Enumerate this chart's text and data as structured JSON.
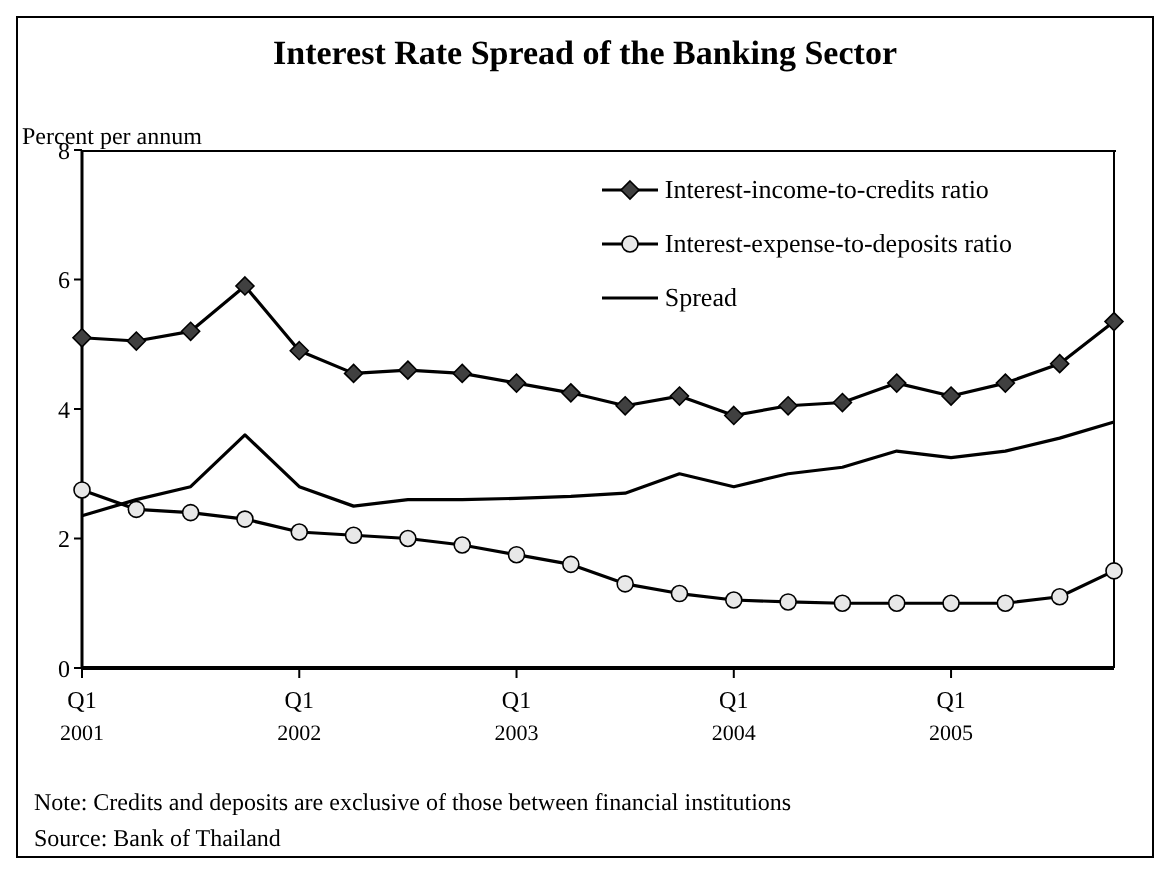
{
  "chart_data": {
    "type": "line",
    "title": "Interest Rate Spread of the Banking Sector",
    "ylabel": "Percent per annum",
    "categories": [
      "Q1\n2001",
      null,
      null,
      null,
      "Q1\n2002",
      null,
      null,
      null,
      "Q1\n2003",
      null,
      null,
      null,
      "Q1\n2004",
      null,
      null,
      null,
      "Q1\n2005",
      null,
      null,
      null
    ],
    "series": [
      {
        "name": "Interest-income-to-credits ratio",
        "color": "#000000",
        "marker": "diamond",
        "values": [
          5.1,
          5.05,
          5.2,
          5.9,
          4.9,
          4.55,
          4.6,
          4.55,
          4.4,
          4.25,
          4.05,
          4.2,
          3.9,
          4.05,
          4.1,
          4.4,
          4.2,
          4.4,
          4.7,
          5.35
        ]
      },
      {
        "name": "Interest-expense-to-deposits ratio",
        "color": "#000000",
        "marker": "circle",
        "values": [
          2.75,
          2.45,
          2.4,
          2.3,
          2.1,
          2.05,
          2.0,
          1.9,
          1.75,
          1.6,
          1.3,
          1.15,
          1.05,
          1.02,
          1.0,
          1.0,
          1.0,
          1.0,
          1.1,
          1.5
        ]
      },
      {
        "name": "Spread",
        "color": "#000000",
        "marker": "none",
        "values": [
          2.35,
          2.6,
          2.8,
          3.6,
          2.8,
          2.5,
          2.6,
          2.6,
          2.62,
          2.65,
          2.7,
          3.0,
          2.8,
          3.0,
          3.1,
          3.35,
          3.25,
          3.35,
          3.55,
          3.8
        ]
      }
    ],
    "ylim": [
      0,
      8
    ],
    "yticks": [
      0,
      2,
      4,
      6,
      8
    ],
    "grid": false,
    "legend": "top right",
    "line_style": "solid",
    "annotations": [
      "Note:  Credits and deposits are exclusive of those between financial institutions",
      "Source: Bank of Thailand"
    ]
  }
}
